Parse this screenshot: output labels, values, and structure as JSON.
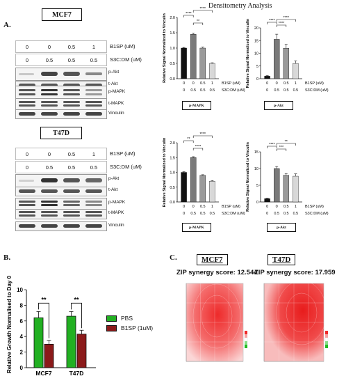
{
  "panel_a": {
    "letter": "A.",
    "densitometry_title": "Densitometry Analysis",
    "mcf7_title": "MCF7",
    "t47d_title": "T47D",
    "b1sp_label": "B1SP (uM)",
    "s3c_label_mcf7": "S3C:DM (uM)",
    "s3c_label_t47d": "S3C:DM (uM)",
    "b1sp_values": [
      "0",
      "0",
      "0.5",
      "1"
    ],
    "s3c_values": [
      "0",
      "0.5",
      "0.5",
      "0.5"
    ],
    "blot_labels_mcf7": [
      "p-Akt",
      "t-Akt",
      "p-MAPK",
      "t-MAPK",
      "Vinculin"
    ],
    "blot_labels_t47d": [
      "p-Akt",
      "t-Akt",
      "p-MAPK",
      "t-MAPK",
      "Vinculin"
    ],
    "bar_ylabel": "Relative Signal Normalized to Vinculin",
    "bar_x_b1sp": [
      "0",
      "0",
      "0.5",
      "1"
    ],
    "bar_x_s3c": [
      "0",
      "0.5",
      "0.5",
      "0.5"
    ],
    "bar_x_b1sp_label": "B1SP (uM)",
    "bar_x_s3c_label": "S3C:DM (uM)",
    "caption_pmapk": "p-MAPK",
    "caption_pakt": "p-Akt"
  },
  "panel_b": {
    "letter": "B.",
    "legend_pbs": "PBS",
    "legend_b1sp": "B1SP (1uM)",
    "pbs_color": "#22b022",
    "b1sp_color": "#8b1a1a"
  },
  "panel_c": {
    "letter": "C.",
    "mcf7_title": "MCF7",
    "t47d_title": "T47D",
    "mcf7_score": "ZIP synergy score: 12.544",
    "t47d_score": "ZIP synergy score: 17.959"
  },
  "chart_data": [
    {
      "id": "mcf7-pmapk",
      "type": "bar",
      "categories": [
        "0/0",
        "0/0.5",
        "0.5/0.5",
        "1/0.5"
      ],
      "values": [
        1.0,
        1.45,
        1.0,
        0.5
      ],
      "errors": [
        0.02,
        0.03,
        0.03,
        0.02
      ],
      "ylim": [
        0,
        2
      ],
      "yticks": [
        "0.0",
        "0.5",
        "1.0",
        "1.5",
        "2.0"
      ],
      "significance": [
        "****",
        "**",
        "****"
      ],
      "bar_colors": [
        "#111111",
        "#7a7a7a",
        "#9a9a9a",
        "#d8d8d8"
      ]
    },
    {
      "id": "mcf7-pakt",
      "type": "bar",
      "categories": [
        "0/0",
        "0/0.5",
        "0.5/0.5",
        "1/0.5"
      ],
      "values": [
        1.0,
        15.5,
        12.0,
        6.0
      ],
      "errors": [
        0.2,
        2.0,
        1.5,
        1.0
      ],
      "ylim": [
        0,
        20
      ],
      "yticks": [
        "0",
        "5",
        "10",
        "15",
        "20"
      ],
      "significance": [
        "****",
        "****",
        "****"
      ],
      "bar_colors": [
        "#111111",
        "#7a7a7a",
        "#9a9a9a",
        "#d8d8d8"
      ]
    },
    {
      "id": "t47d-pmapk",
      "type": "bar",
      "categories": [
        "0/0",
        "0/0.5",
        "0.5/0.5",
        "1/0.5"
      ],
      "values": [
        1.0,
        1.5,
        0.9,
        0.7
      ],
      "errors": [
        0.02,
        0.03,
        0.02,
        0.02
      ],
      "ylim": [
        0,
        2
      ],
      "yticks": [
        "0.0",
        "0.5",
        "1.0",
        "1.5",
        "2.0"
      ],
      "significance": [
        "**",
        "****",
        "****"
      ],
      "bar_colors": [
        "#111111",
        "#7a7a7a",
        "#9a9a9a",
        "#d8d8d8"
      ]
    },
    {
      "id": "t47d-pakt",
      "type": "bar",
      "categories": [
        "0/0",
        "0/0.5",
        "0.5/0.5",
        "1/0.5"
      ],
      "values": [
        1.0,
        10.0,
        8.0,
        7.7
      ],
      "errors": [
        0.1,
        0.6,
        0.5,
        0.7
      ],
      "ylim": [
        0,
        15
      ],
      "yticks": [
        "0",
        "5",
        "10",
        "15"
      ],
      "significance": [
        "****",
        "***",
        "**"
      ],
      "bar_colors": [
        "#111111",
        "#7a7a7a",
        "#9a9a9a",
        "#d8d8d8"
      ]
    },
    {
      "id": "growth",
      "type": "bar",
      "categories": [
        "MCF7",
        "T47D"
      ],
      "series": [
        {
          "name": "PBS",
          "values": [
            6.4,
            6.6
          ],
          "errors": [
            0.8,
            0.6
          ]
        },
        {
          "name": "B1SP (1uM)",
          "values": [
            3.0,
            4.3
          ],
          "errors": [
            0.5,
            0.5
          ]
        }
      ],
      "ylabel": "Relative Growth Normalised to Day 0",
      "ylim": [
        0,
        10
      ],
      "yticks": [
        "0",
        "2",
        "4",
        "6",
        "8",
        "10"
      ],
      "significance": [
        "**",
        "**"
      ]
    }
  ]
}
